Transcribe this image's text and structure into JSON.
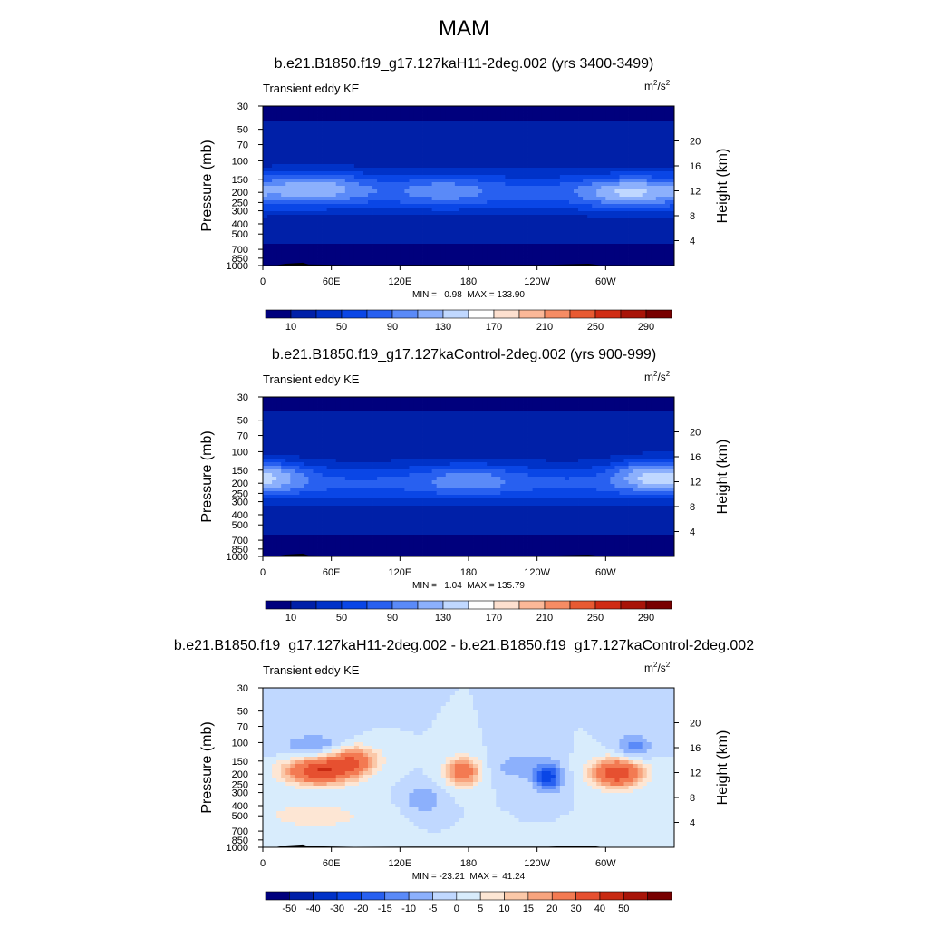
{
  "figure": {
    "season_title": "MAM",
    "colors": {
      "abs_levels": [
        "#00007d",
        "#0020a8",
        "#0032c8",
        "#0a46e6",
        "#2860f0",
        "#5a8af8",
        "#8cb0fc",
        "#c0d8ff",
        "#ffffff",
        "#fde0cf",
        "#fbb898",
        "#f68c64",
        "#e85a32",
        "#d02c14",
        "#a81408",
        "#780000"
      ],
      "diff_levels": [
        "#00007d",
        "#0020a8",
        "#0032c8",
        "#0a46e6",
        "#2860f0",
        "#5a8af8",
        "#8cb0fc",
        "#c0d8ff",
        "#d8ecfc",
        "#fde6d4",
        "#fbc8a8",
        "#f8a47e",
        "#f37a52",
        "#e65030",
        "#c82a12",
        "#a81408",
        "#780000"
      ],
      "land": "#000000"
    }
  },
  "chart_data": [
    {
      "type": "heatmap",
      "title": "b.e21.B1850.f19_g17.127kaH11-2deg.002 (yrs 3400-3499)",
      "left_label": "Transient eddy KE",
      "units_base": "m",
      "units_exp1": "2",
      "units_mid": "/s",
      "units_exp2": "2",
      "ylabel_left": "Pressure (mb)",
      "ylabel_right": "Height (km)",
      "pressure_ticks": [
        "30",
        "50",
        "70",
        "100",
        "150",
        "200",
        "250",
        "300",
        "400",
        "500",
        "700",
        "850",
        "1000"
      ],
      "height_ticks": [
        "4",
        "8",
        "12",
        "16",
        "20"
      ],
      "x_ticks": [
        "0",
        "60E",
        "120E",
        "180",
        "120W",
        "60W"
      ],
      "stats_text": "MIN =   0.98  MAX = 133.90",
      "min": 0.98,
      "max": 133.9,
      "colorbar_labels": [
        "10",
        "50",
        "90",
        "130",
        "170",
        "210",
        "250",
        "290"
      ],
      "jet_max": 115,
      "features": [
        {
          "lon": 45,
          "p": 175,
          "amp": 55,
          "w": 45
        },
        {
          "lon": 160,
          "p": 190,
          "amp": 30,
          "w": 40
        },
        {
          "lon": 320,
          "p": 200,
          "amp": 60,
          "w": 40
        }
      ]
    },
    {
      "type": "heatmap",
      "title": "b.e21.B1850.f19_g17.127kaControl-2deg.002 (yrs 900-999)",
      "left_label": "Transient eddy KE",
      "units_base": "m",
      "units_exp1": "2",
      "units_mid": "/s",
      "units_exp2": "2",
      "ylabel_left": "Pressure (mb)",
      "ylabel_right": "Height (km)",
      "pressure_ticks": [
        "30",
        "50",
        "70",
        "100",
        "150",
        "200",
        "250",
        "300",
        "400",
        "500",
        "700",
        "850",
        "1000"
      ],
      "height_ticks": [
        "4",
        "8",
        "12",
        "16",
        "20"
      ],
      "x_ticks": [
        "0",
        "60E",
        "120E",
        "180",
        "120W",
        "60W"
      ],
      "stats_text": "MIN =   1.04  MAX = 135.79",
      "min": 1.04,
      "max": 135.79,
      "colorbar_labels": [
        "10",
        "50",
        "90",
        "130",
        "170",
        "210",
        "250",
        "290"
      ],
      "jet_max": 110,
      "features": [
        {
          "lon": 10,
          "p": 170,
          "amp": 50,
          "w": 30
        },
        {
          "lon": 180,
          "p": 180,
          "amp": 35,
          "w": 40
        },
        {
          "lon": 335,
          "p": 165,
          "amp": 60,
          "w": 30
        }
      ]
    },
    {
      "type": "heatmap",
      "title": "b.e21.B1850.f19_g17.127kaH11-2deg.002 - b.e21.B1850.f19_g17.127kaControl-2deg.002",
      "left_label": "Transient eddy KE",
      "units_base": "m",
      "units_exp1": "2",
      "units_mid": "/s",
      "units_exp2": "2",
      "ylabel_left": "Pressure (mb)",
      "ylabel_right": "Height (km)",
      "pressure_ticks": [
        "30",
        "50",
        "70",
        "100",
        "150",
        "200",
        "250",
        "300",
        "400",
        "500",
        "700",
        "850",
        "1000"
      ],
      "height_ticks": [
        "4",
        "8",
        "12",
        "16",
        "20"
      ],
      "x_ticks": [
        "0",
        "60E",
        "120E",
        "180",
        "120W",
        "60W"
      ],
      "stats_text": "MIN = -23.21  MAX =  41.24",
      "min": -23.21,
      "max": 41.24,
      "colorbar_labels": [
        "-50",
        "-40",
        "-30",
        "-20",
        "-15",
        "-10",
        "-5",
        "0",
        "5",
        "10",
        "15",
        "20",
        "30",
        "40",
        "50"
      ],
      "features": [
        {
          "lon": 50,
          "p": 185,
          "amp": 40,
          "w": 30
        },
        {
          "lon": 80,
          "p": 145,
          "amp": 25,
          "w": 20
        },
        {
          "lon": 175,
          "p": 190,
          "amp": 28,
          "w": 15
        },
        {
          "lon": 310,
          "p": 195,
          "amp": 40,
          "w": 22
        },
        {
          "lon": 250,
          "p": 215,
          "amp": -22,
          "w": 12
        },
        {
          "lon": 225,
          "p": 170,
          "amp": -8,
          "w": 25
        },
        {
          "lon": 325,
          "p": 110,
          "amp": -12,
          "w": 15
        },
        {
          "lon": 45,
          "p": 110,
          "amp": -10,
          "w": 30
        },
        {
          "lon": 140,
          "p": 350,
          "amp": -10,
          "w": 15
        },
        {
          "lon": 45,
          "p": 500,
          "amp": 8,
          "w": 50
        }
      ]
    }
  ]
}
